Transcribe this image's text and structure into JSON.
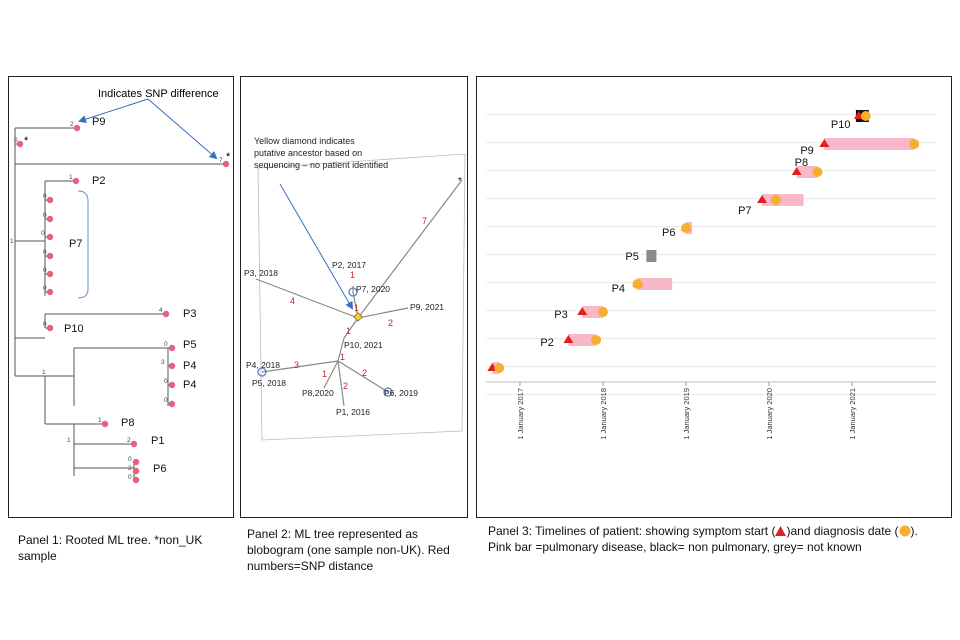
{
  "panel1": {
    "caption": "Panel 1: Rooted ML tree. *non_UK sample",
    "annotation": "Indicates SNP difference",
    "asterisk": "*",
    "labels": {
      "p9": "P9",
      "p2": "P2",
      "p7": "P7",
      "p3": "P3",
      "p10": "P10",
      "p5": "P5",
      "p4a": "P4",
      "p4b": "P4",
      "p8": "P8",
      "p1": "P1",
      "p6": "P6"
    },
    "snp_numbers": {
      "p9": "2",
      "nonuk_left": "0",
      "nonuk_right": "7",
      "p2": "1",
      "p7_group": [
        "0",
        "0",
        "0",
        "0",
        "0",
        "0",
        "0",
        "0"
      ],
      "p7_root": "1",
      "p3": "4",
      "p10": "0",
      "p5": "0",
      "p4a": "3",
      "p4b": "0",
      "p4c": "0",
      "clade": "1",
      "p8": "1",
      "p1": "2",
      "p6": [
        "0",
        "2",
        "0"
      ],
      "p6_root": "1"
    },
    "colors": {
      "leaf": "#e8607a",
      "arrow": "#3a6fc4"
    }
  },
  "panel2": {
    "caption": "Panel 2: ML tree represented as blobogram (one sample  non-UK). Red numbers=SNP distance",
    "note": "Yellow diamond indicates putative ancestor based on sequencing – no patient identified",
    "asterisk": "*",
    "nodes": {
      "p2": "P2, 2017",
      "p7": "P7, 2020",
      "p3": "P3, 2018",
      "p9": "P9, 2021",
      "p10": "P10, 2021",
      "p4": "P4, 2018",
      "p5": "P5, 2018",
      "p8": "P8,2020",
      "p1": "P1, 2016",
      "p6": "P6, 2019"
    },
    "snp": {
      "nonuk": "7",
      "p2": "1",
      "p7": "1",
      "p3": "4",
      "p9": "2",
      "p10": "1",
      "p10b": "1",
      "p4": "3",
      "p8": "1",
      "p1": "2",
      "p6": "2"
    },
    "colors": {
      "snp": "#d12020",
      "diamond": "#f2d22a",
      "circle": "#5a7fc0"
    }
  },
  "panel3": {
    "caption_line1_a": "Panel 3: Timelines of patient: showing symptom start (",
    "caption_line1_b": ")and diagnosis date  (",
    "caption_line1_c": ").",
    "caption_line2": "Pink bar =pulmonary disease, black= non pulmonary, grey= not known",
    "x_ticks": [
      "1 January 2017",
      "1 January 2018",
      "1 January 2019",
      "1 January 2020",
      "1 January 2021"
    ],
    "patients": [
      "P1",
      "P2",
      "P3",
      "P4",
      "P5",
      "P6",
      "P7",
      "P8",
      "P9",
      "P10"
    ],
    "colors": {
      "pulmonary": "#f8b8c8",
      "non_pulmonary": "#111111",
      "unknown": "#8a8a8a",
      "symptom": "#e02020",
      "diagnosis": "#f5b030"
    }
  },
  "chart_data": {
    "type": "timeline",
    "x_ticks": [
      "1 January 2017",
      "1 January 2018",
      "1 January 2019",
      "1 January 2020",
      "1 January 2021"
    ],
    "patients": [
      {
        "label": "P1",
        "symptom": "2016-09",
        "diagnosis": "2016-10",
        "disease": "pulmonary"
      },
      {
        "label": "P2",
        "symptom": "2017-08",
        "diagnosis": "2017-12",
        "disease": "pulmonary"
      },
      {
        "label": "P3",
        "symptom": "2017-10",
        "diagnosis": "2018-01",
        "disease": "pulmonary"
      },
      {
        "label": "P4",
        "symptom": "2018-06",
        "diagnosis": "2018-06",
        "disease": "pulmonary",
        "bar_end": "2018-11"
      },
      {
        "label": "P5",
        "diagnosis": "2018-08",
        "disease": "unknown"
      },
      {
        "label": "P6",
        "symptom": "2019-01",
        "diagnosis": "2019-01",
        "disease": "pulmonary"
      },
      {
        "label": "P7",
        "symptom": "2019-12",
        "diagnosis": "2020-02",
        "disease": "pulmonary",
        "bar_end": "2020-06"
      },
      {
        "label": "P8",
        "symptom": "2020-05",
        "diagnosis": "2020-08",
        "disease": "pulmonary"
      },
      {
        "label": "P9",
        "symptom": "2020-09",
        "diagnosis": "2021-10",
        "disease": "pulmonary"
      },
      {
        "label": "P10",
        "symptom": "2021-02",
        "diagnosis": "2021-03",
        "disease": "non_pulmonary"
      }
    ]
  }
}
